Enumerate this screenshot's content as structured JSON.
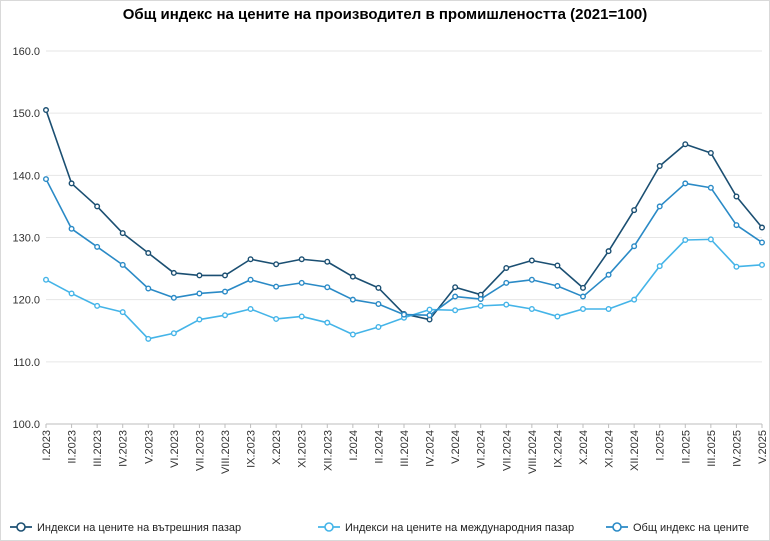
{
  "chart_data": {
    "type": "line",
    "title": "Общ индекс на цените на производител в промишлеността (2021=100)",
    "ylim": [
      100,
      160
    ],
    "yticks": [
      "100.0",
      "110.0",
      "120.0",
      "130.0",
      "140.0",
      "150.0",
      "160.0"
    ],
    "grid": true,
    "legend_position": "bottom",
    "categories": [
      "I.2023",
      "II.2023",
      "III.2023",
      "IV.2023",
      "V.2023",
      "VI.2023",
      "VII.2023",
      "VIII.2023",
      "IX.2023",
      "X.2023",
      "XI.2023",
      "XII.2023",
      "I.2024",
      "II.2024",
      "III.2024",
      "IV.2024",
      "V.2024",
      "VI.2024",
      "VII.2024",
      "VIII.2024",
      "IX.2024",
      "X.2024",
      "XI.2024",
      "XII.2024",
      "I.2025",
      "II.2025",
      "III.2025",
      "IV.2025",
      "V.2025"
    ],
    "series": [
      {
        "name": "Индекси на цените на вътрешния пазар",
        "color": "#1b4f72",
        "values": [
          150.5,
          138.7,
          135.0,
          130.7,
          127.5,
          124.3,
          123.9,
          123.9,
          126.5,
          125.7,
          126.5,
          126.1,
          123.7,
          121.9,
          117.7,
          116.8,
          122.0,
          120.8,
          125.1,
          126.3,
          125.5,
          121.9,
          127.8,
          134.4,
          141.5,
          145.0,
          143.6,
          136.6,
          131.6
        ]
      },
      {
        "name": "Индекси на цените на международния пазар",
        "color": "#44b4e8",
        "values": [
          123.2,
          121.0,
          119.0,
          118.0,
          113.7,
          114.6,
          116.8,
          117.5,
          118.5,
          116.9,
          117.3,
          116.3,
          114.4,
          115.6,
          117.1,
          118.4,
          118.3,
          119.0,
          119.2,
          118.5,
          117.3,
          118.5,
          118.5,
          120.0,
          125.4,
          129.6,
          129.7,
          125.3,
          125.6
        ]
      },
      {
        "name": "Общ индекс на цените",
        "color": "#2a8ac6",
        "values": [
          139.4,
          131.4,
          128.5,
          125.6,
          121.8,
          120.3,
          121.0,
          121.3,
          123.2,
          122.1,
          122.7,
          122.0,
          120.0,
          119.3,
          117.6,
          117.5,
          120.5,
          120.1,
          122.7,
          123.2,
          122.2,
          120.5,
          124.0,
          128.6,
          135.0,
          138.7,
          138.0,
          132.0,
          129.2
        ]
      }
    ]
  }
}
